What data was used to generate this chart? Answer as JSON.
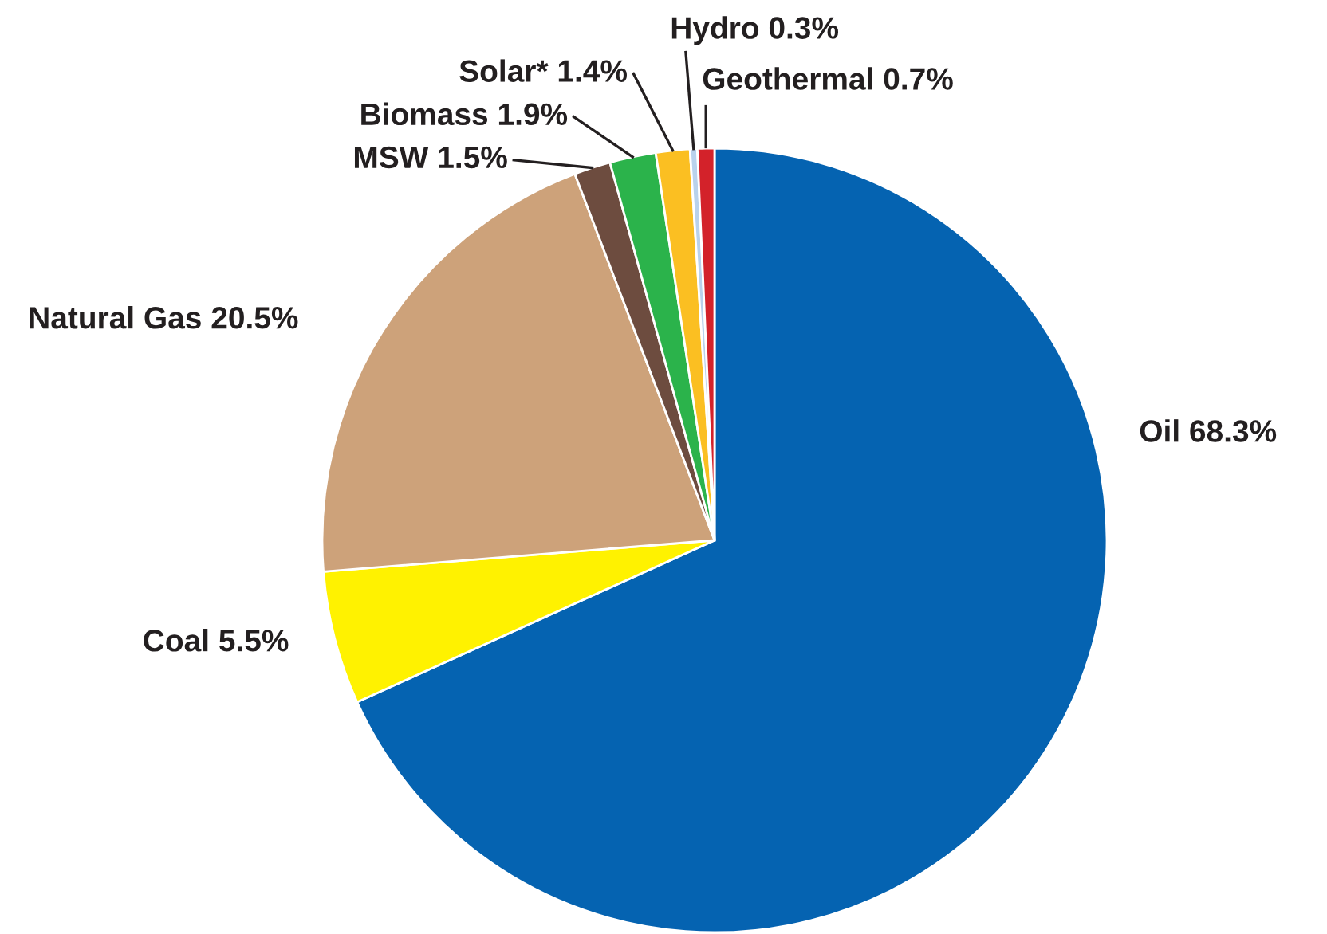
{
  "chart_data": {
    "type": "pie",
    "categories": [
      "Oil",
      "Coal",
      "Natural Gas",
      "MSW",
      "Biomass",
      "Solar*",
      "Hydro",
      "Geothermal"
    ],
    "values": [
      68.3,
      5.5,
      20.5,
      1.5,
      1.9,
      1.4,
      0.3,
      0.7
    ],
    "value_labels": [
      "68.3%",
      "5.5%",
      "20.5%",
      "1.5%",
      "1.9%",
      "1.4%",
      "0.3%",
      "0.7%"
    ],
    "colors": [
      "#0563b1",
      "#fff200",
      "#cda27a",
      "#6d4c3f",
      "#2bb34b",
      "#fbbf22",
      "#b9d2ec",
      "#d3222a"
    ]
  }
}
